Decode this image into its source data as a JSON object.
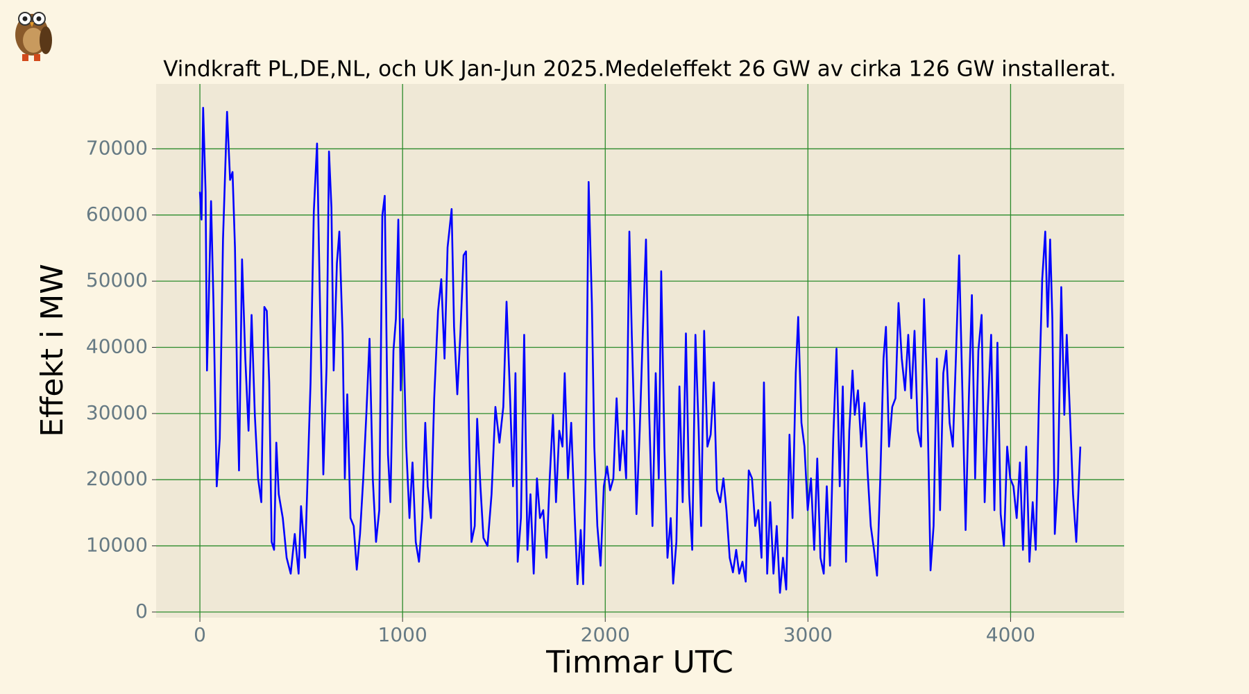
{
  "chart_data": {
    "type": "line",
    "title": "Vindkraft PL,DE,NL, och UK Jan-Jun 2025.Medeleffekt 26 GW av cirka 126 GW installerat.",
    "xlabel": "Timmar UTC",
    "ylabel": "Effekt i MW",
    "color": "#0000ff",
    "grid": true,
    "grid_color": "#2a8a2a",
    "xlim": [
      -216,
      4560
    ],
    "ylim": [
      -850,
      79800
    ],
    "xticks": [
      0,
      1000,
      2000,
      3000,
      4000
    ],
    "yticks": [
      0,
      10000,
      20000,
      30000,
      40000,
      50000,
      60000,
      70000
    ],
    "x": [
      0,
      8,
      16,
      28,
      35,
      43,
      55,
      67,
      83,
      98,
      114,
      134,
      149,
      161,
      173,
      185,
      193,
      208,
      224,
      240,
      255,
      271,
      287,
      303,
      318,
      330,
      342,
      354,
      366,
      377,
      389,
      409,
      428,
      448,
      468,
      487,
      499,
      519,
      546,
      562,
      578,
      593,
      609,
      625,
      637,
      649,
      660,
      676,
      688,
      704,
      715,
      727,
      743,
      759,
      774,
      790,
      806,
      822,
      837,
      853,
      869,
      885,
      900,
      912,
      928,
      940,
      955,
      967,
      979,
      991,
      1002,
      1018,
      1034,
      1049,
      1065,
      1081,
      1097,
      1112,
      1124,
      1140,
      1156,
      1175,
      1191,
      1207,
      1222,
      1242,
      1254,
      1270,
      1285,
      1301,
      1313,
      1329,
      1340,
      1356,
      1368,
      1384,
      1399,
      1419,
      1439,
      1458,
      1478,
      1497,
      1513,
      1529,
      1545,
      1557,
      1568,
      1584,
      1600,
      1616,
      1631,
      1647,
      1663,
      1678,
      1694,
      1710,
      1726,
      1742,
      1757,
      1773,
      1789,
      1800,
      1816,
      1832,
      1848,
      1863,
      1879,
      1891,
      1903,
      1918,
      1934,
      1946,
      1961,
      1977,
      1993,
      2009,
      2024,
      2040,
      2056,
      2072,
      2087,
      2103,
      2119,
      2131,
      2142,
      2154,
      2170,
      2185,
      2201,
      2217,
      2233,
      2249,
      2264,
      2276,
      2292,
      2307,
      2323,
      2335,
      2351,
      2366,
      2382,
      2398,
      2414,
      2429,
      2445,
      2461,
      2473,
      2488,
      2504,
      2520,
      2536,
      2551,
      2567,
      2583,
      2598,
      2614,
      2630,
      2646,
      2661,
      2677,
      2693,
      2708,
      2724,
      2740,
      2755,
      2771,
      2783,
      2799,
      2814,
      2830,
      2846,
      2862,
      2877,
      2893,
      2909,
      2924,
      2940,
      2952,
      2968,
      2983,
      2999,
      3015,
      3031,
      3046,
      3062,
      3078,
      3093,
      3109,
      3125,
      3141,
      3157,
      3172,
      3188,
      3204,
      3220,
      3231,
      3247,
      3263,
      3279,
      3294,
      3310,
      3326,
      3341,
      3357,
      3373,
      3385,
      3400,
      3416,
      3432,
      3447,
      3463,
      3479,
      3495,
      3510,
      3526,
      3542,
      3558,
      3573,
      3589,
      3605,
      3620,
      3636,
      3652,
      3668,
      3683,
      3699,
      3715,
      3730,
      3746,
      3762,
      3778,
      3794,
      3809,
      3825,
      3841,
      3857,
      3872,
      3888,
      3904,
      3920,
      3935,
      3951,
      3967,
      3983,
      3998,
      4014,
      4030,
      4046,
      4061,
      4077,
      4093,
      4109,
      4124,
      4140,
      4156,
      4171,
      4183,
      4195,
      4206,
      4218,
      4234,
      4250,
      4265,
      4277,
      4293,
      4308,
      4324,
      4344
    ],
    "values": [
      63500,
      59300,
      76200,
      63500,
      36500,
      46100,
      62100,
      46700,
      19000,
      26200,
      56300,
      75600,
      65300,
      66500,
      55100,
      32200,
      21400,
      53300,
      38300,
      27400,
      44900,
      29800,
      20200,
      16600,
      46100,
      45500,
      34700,
      10600,
      9400,
      25600,
      17800,
      14200,
      8200,
      5800,
      11800,
      5800,
      16000,
      8200,
      34700,
      60500,
      70800,
      45500,
      20800,
      37100,
      69600,
      61100,
      36500,
      52700,
      57500,
      41900,
      20200,
      32900,
      14200,
      13000,
      6400,
      11800,
      20200,
      30400,
      41300,
      20200,
      10600,
      15400,
      59900,
      62900,
      23800,
      16600,
      39500,
      44300,
      59300,
      33500,
      44300,
      25000,
      14200,
      22600,
      10600,
      7600,
      14200,
      28600,
      19000,
      14200,
      32300,
      45500,
      50300,
      38300,
      55100,
      60900,
      43100,
      32900,
      41900,
      53900,
      54500,
      25000,
      10600,
      13000,
      29200,
      19000,
      11200,
      10000,
      17800,
      31000,
      25600,
      31000,
      46900,
      33700,
      19000,
      36100,
      7600,
      14200,
      41900,
      9400,
      17800,
      5800,
      20200,
      14200,
      15400,
      8200,
      20200,
      29800,
      16600,
      27400,
      25000,
      36100,
      20200,
      28600,
      15400,
      4200,
      12400,
      4200,
      20200,
      65000,
      46700,
      25000,
      13000,
      7000,
      19000,
      22000,
      18400,
      20200,
      32300,
      21400,
      27400,
      20200,
      57500,
      41900,
      29800,
      14800,
      27400,
      41900,
      56300,
      29800,
      13000,
      36100,
      20200,
      51500,
      25000,
      8200,
      14200,
      4300,
      10600,
      34100,
      16600,
      42100,
      17800,
      9400,
      41900,
      27400,
      13000,
      42500,
      25000,
      26800,
      34700,
      18400,
      16600,
      20200,
      15400,
      8200,
      6000,
      9400,
      5800,
      7600,
      4600,
      21400,
      20200,
      13000,
      15400,
      8200,
      34700,
      5800,
      16600,
      5800,
      13000,
      2900,
      8200,
      3400,
      26800,
      14200,
      36100,
      44600,
      28600,
      25000,
      15400,
      20200,
      9400,
      23200,
      8200,
      5800,
      19000,
      7000,
      26200,
      39800,
      19000,
      34100,
      7600,
      27400,
      36500,
      29800,
      33500,
      25000,
      31600,
      21400,
      13000,
      9400,
      5500,
      20200,
      38300,
      43100,
      25000,
      31000,
      32300,
      46700,
      38300,
      33500,
      41900,
      32300,
      42500,
      27400,
      25000,
      47300,
      32300,
      6300,
      13000,
      38300,
      15400,
      36100,
      39500,
      28600,
      25000,
      38300,
      53900,
      33500,
      12400,
      32300,
      47900,
      20200,
      39500,
      44900,
      16600,
      31000,
      41900,
      15400,
      40700,
      14800,
      10000,
      25000,
      20200,
      19000,
      14200,
      22600,
      9400,
      25000,
      7600,
      16600,
      9400,
      32300,
      50300,
      57500,
      43100,
      56300,
      44300,
      11800,
      20200,
      49100,
      29800,
      41900,
      29800,
      17800,
      10600,
      25000
    ]
  }
}
